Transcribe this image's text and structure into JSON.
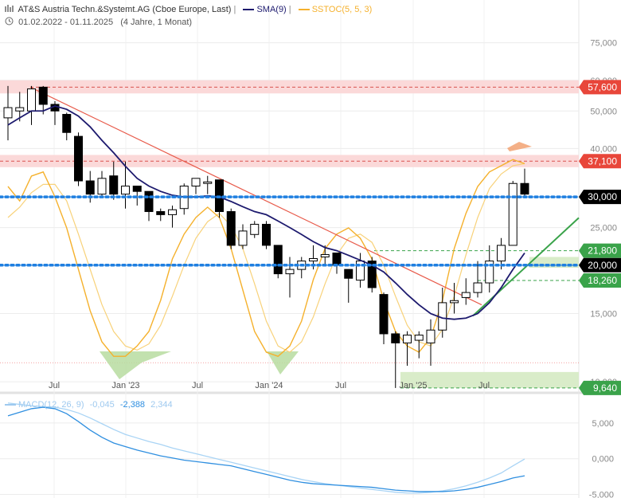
{
  "header": {
    "title": "AT&S Austria Techn.&Systemt.AG (Cboe Europe, Last)",
    "sma_label": "SMA(9)",
    "sstoc_label": "SSTOC(5, 5, 3)",
    "date_range": "01.02.2022 - 01.11.2025",
    "duration": "(4 Jahre, 1 Monat)"
  },
  "macd": {
    "label": "MACD(12, 26, 9)",
    "values": [
      "-0,045",
      "-2,388",
      "2,344"
    ]
  },
  "colors": {
    "candle_up": "#ffffff",
    "candle_down": "#000000",
    "sma": "#1d1a6e",
    "sstoc_k": "#f5b12d",
    "sstoc_d": "#f8d27a",
    "trend_down": "#e85a4a",
    "trend_up": "#3aa34a",
    "support_dotted": "#1f7fe0",
    "macd_line": "#2f8fe0",
    "signal_line": "#a9d4f5"
  },
  "chart_data": {
    "type": "candlestick",
    "y_scale": "log",
    "ylim": [
      9500,
      80000
    ],
    "y_ticks": [
      "75,000",
      "60,000",
      "50,000",
      "40,000",
      "30,000",
      "25,000",
      "20,000",
      "15,000",
      "10,000"
    ],
    "x_ticks": [
      "Jul",
      "Jan '23",
      "Jul",
      "Jan '24",
      "Jul",
      "Jan '25",
      "Jul"
    ],
    "price_tags": [
      {
        "label": "57,600",
        "value": 57600,
        "color": "#e8463a"
      },
      {
        "label": "37,100",
        "value": 37100,
        "color": "#e8463a"
      },
      {
        "label": "30,000",
        "value": 30000,
        "color": "#000000"
      },
      {
        "label": "21,800",
        "value": 21800,
        "color": "#3aa34a"
      },
      {
        "label": "20,000",
        "value": 20000,
        "color": "#000000"
      },
      {
        "label": "18,260",
        "value": 18260,
        "color": "#3aa34a"
      },
      {
        "label": "9,640",
        "value": 9640,
        "color": "#3aa34a"
      }
    ],
    "candles": [
      {
        "o": 48000,
        "h": 58000,
        "l": 42000,
        "c": 51000
      },
      {
        "o": 50000,
        "h": 56000,
        "l": 47000,
        "c": 51000
      },
      {
        "o": 50000,
        "h": 58000,
        "l": 46000,
        "c": 57000
      },
      {
        "o": 57600,
        "h": 58000,
        "l": 49000,
        "c": 52000
      },
      {
        "o": 52000,
        "h": 53000,
        "l": 46000,
        "c": 50000
      },
      {
        "o": 49000,
        "h": 49500,
        "l": 42000,
        "c": 44000
      },
      {
        "o": 43000,
        "h": 44000,
        "l": 32000,
        "c": 33000
      },
      {
        "o": 33000,
        "h": 35000,
        "l": 29000,
        "c": 30500
      },
      {
        "o": 30500,
        "h": 35000,
        "l": 30000,
        "c": 33500
      },
      {
        "o": 34000,
        "h": 37000,
        "l": 29500,
        "c": 30500
      },
      {
        "o": 30500,
        "h": 37000,
        "l": 28000,
        "c": 32000
      },
      {
        "o": 32000,
        "h": 32000,
        "l": 28500,
        "c": 31000
      },
      {
        "o": 31000,
        "h": 31000,
        "l": 26000,
        "c": 27500
      },
      {
        "o": 27500,
        "h": 28000,
        "l": 26000,
        "c": 27000
      },
      {
        "o": 27000,
        "h": 28500,
        "l": 25000,
        "c": 27800
      },
      {
        "o": 28000,
        "h": 32500,
        "l": 27000,
        "c": 32000
      },
      {
        "o": 32000,
        "h": 33500,
        "l": 30500,
        "c": 33500
      },
      {
        "o": 32500,
        "h": 34000,
        "l": 30500,
        "c": 32800
      },
      {
        "o": 33200,
        "h": 33200,
        "l": 26500,
        "c": 27500
      },
      {
        "o": 27500,
        "h": 28000,
        "l": 22000,
        "c": 22500
      },
      {
        "o": 22500,
        "h": 25500,
        "l": 22000,
        "c": 24500
      },
      {
        "o": 24000,
        "h": 26000,
        "l": 23500,
        "c": 25500
      },
      {
        "o": 25500,
        "h": 26000,
        "l": 22000,
        "c": 22500
      },
      {
        "o": 22500,
        "h": 22500,
        "l": 18500,
        "c": 19000
      },
      {
        "o": 19000,
        "h": 21000,
        "l": 16500,
        "c": 19500
      },
      {
        "o": 19500,
        "h": 21000,
        "l": 18500,
        "c": 20500
      },
      {
        "o": 20500,
        "h": 22500,
        "l": 19500,
        "c": 20800
      },
      {
        "o": 21000,
        "h": 22500,
        "l": 20000,
        "c": 21300
      },
      {
        "o": 21500,
        "h": 21500,
        "l": 19000,
        "c": 20000
      },
      {
        "o": 19500,
        "h": 19500,
        "l": 16000,
        "c": 18500
      },
      {
        "o": 18300,
        "h": 21500,
        "l": 17500,
        "c": 20500
      },
      {
        "o": 20500,
        "h": 21000,
        "l": 17000,
        "c": 17500
      },
      {
        "o": 16800,
        "h": 17000,
        "l": 12500,
        "c": 13300
      },
      {
        "o": 13300,
        "h": 13500,
        "l": 9640,
        "c": 12600
      },
      {
        "o": 12600,
        "h": 13500,
        "l": 11000,
        "c": 13200
      },
      {
        "o": 12800,
        "h": 13500,
        "l": 11500,
        "c": 13200
      },
      {
        "o": 12600,
        "h": 14500,
        "l": 11000,
        "c": 13600
      },
      {
        "o": 13600,
        "h": 17500,
        "l": 13000,
        "c": 16000
      },
      {
        "o": 16000,
        "h": 18000,
        "l": 15000,
        "c": 16200
      },
      {
        "o": 16500,
        "h": 18500,
        "l": 15800,
        "c": 17000
      },
      {
        "o": 17000,
        "h": 20500,
        "l": 16500,
        "c": 18000
      },
      {
        "o": 18000,
        "h": 22500,
        "l": 17000,
        "c": 20500
      },
      {
        "o": 20500,
        "h": 23500,
        "l": 19500,
        "c": 22500
      },
      {
        "o": 22500,
        "h": 33000,
        "l": 22500,
        "c": 32500
      },
      {
        "o": 32500,
        "h": 35500,
        "l": 30000,
        "c": 30500
      }
    ],
    "sma": [
      46000,
      48000,
      50000,
      50000,
      51500,
      50500,
      48500,
      45500,
      42000,
      39000,
      36000,
      33500,
      32000,
      31000,
      30300,
      30000,
      30000,
      30200,
      30000,
      29200,
      28300,
      27500,
      27000,
      26000,
      25000,
      24000,
      23000,
      22200,
      21800,
      21200,
      20600,
      20000,
      19200,
      18000,
      16800,
      15800,
      15000,
      14600,
      14500,
      14600,
      15000,
      16000,
      17500,
      19500,
      21500
    ],
    "sstoc_k": [
      85,
      78,
      90,
      92,
      80,
      65,
      45,
      25,
      10,
      3,
      3,
      8,
      15,
      30,
      50,
      62,
      70,
      75,
      70,
      55,
      35,
      15,
      5,
      3,
      8,
      20,
      40,
      55,
      62,
      65,
      60,
      50,
      30,
      15,
      8,
      5,
      12,
      30,
      55,
      72,
      85,
      92,
      95,
      98,
      96
    ],
    "sstoc_d": [
      70,
      75,
      82,
      86,
      86,
      78,
      62,
      45,
      28,
      15,
      8,
      6,
      9,
      18,
      32,
      47,
      60,
      68,
      72,
      66,
      55,
      38,
      20,
      8,
      5,
      10,
      22,
      38,
      52,
      60,
      62,
      58,
      47,
      32,
      18,
      10,
      8,
      16,
      32,
      52,
      70,
      84,
      91,
      95,
      96
    ],
    "macd_ylim": [
      -5500,
      9000
    ],
    "macd_ticks": [
      {
        "label": "5,000",
        "value": 5000
      },
      {
        "label": "0,000",
        "value": 0
      },
      {
        "label": "-5,000",
        "value": -5000
      }
    ],
    "macd_line": [
      6000,
      6500,
      7000,
      7200,
      7000,
      6300,
      5200,
      4000,
      3000,
      2200,
      1700,
      1200,
      800,
      400,
      100,
      -200,
      -400,
      -600,
      -800,
      -1000,
      -1400,
      -1800,
      -2200,
      -2600,
      -3000,
      -3300,
      -3500,
      -3600,
      -3700,
      -3800,
      -3900,
      -4000,
      -4200,
      -4400,
      -4500,
      -4600,
      -4600,
      -4600,
      -4500,
      -4300,
      -4000,
      -3600,
      -3200,
      -2700,
      -2388
    ],
    "signal_line": [
      7800,
      7600,
      7400,
      7300,
      7200,
      6900,
      6400,
      5700,
      4900,
      4100,
      3400,
      2900,
      2400,
      2000,
      1500,
      1100,
      700,
      300,
      -100,
      -500,
      -900,
      -1300,
      -1700,
      -2100,
      -2500,
      -2900,
      -3200,
      -3500,
      -3700,
      -3900,
      -4100,
      -4300,
      -4500,
      -4700,
      -4800,
      -4800,
      -4700,
      -4500,
      -4200,
      -3800,
      -3300,
      -2700,
      -2000,
      -1000,
      -45
    ]
  }
}
